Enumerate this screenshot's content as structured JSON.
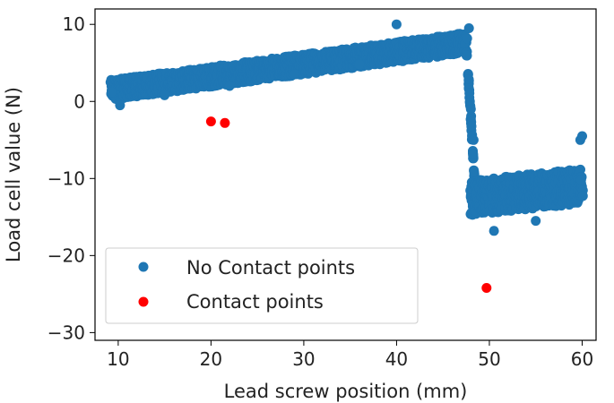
{
  "chart_data": {
    "type": "scatter",
    "title": "",
    "xlabel": "Lead screw position (mm)",
    "ylabel": "Load cell value (N)",
    "xlim": [
      7.5,
      61.5
    ],
    "ylim": [
      -31,
      12
    ],
    "xticks": [
      10,
      20,
      30,
      40,
      50,
      60
    ],
    "yticks": [
      -30,
      -20,
      -10,
      0,
      10
    ],
    "xtick_labels": [
      "10",
      "20",
      "30",
      "40",
      "50",
      "60"
    ],
    "ytick_labels": [
      "−30",
      "−20",
      "−10",
      "0",
      "10"
    ],
    "grid": false,
    "legend_position": "lower-left",
    "series": [
      {
        "name": "No Contact points",
        "color": "#1f77b4",
        "bands": [
          {
            "x_start": 9.2,
            "x_end": 47.5,
            "y_start_center": 1.5,
            "y_end_center": 7.6,
            "spread": 2.6
          },
          {
            "x_start": 47.6,
            "x_end": 48.5,
            "y_start_center": 6.0,
            "y_end_center": -12.0,
            "spread": 1.5
          },
          {
            "x_start": 48.0,
            "x_end": 60.0,
            "y_start_center": -12.5,
            "y_end_center": -11.0,
            "spread": 4.5
          }
        ],
        "points": [
          {
            "x": 9.3,
            "y": 1.2
          },
          {
            "x": 10.2,
            "y": -0.5
          },
          {
            "x": 15.0,
            "y": 0.8
          },
          {
            "x": 22.0,
            "y": 2.0
          },
          {
            "x": 29.0,
            "y": 3.5
          },
          {
            "x": 36.0,
            "y": 4.8
          },
          {
            "x": 40.0,
            "y": 10.0
          },
          {
            "x": 47.8,
            "y": 9.5
          },
          {
            "x": 48.0,
            "y": -1.0
          },
          {
            "x": 48.3,
            "y": -5.0
          },
          {
            "x": 50.5,
            "y": -16.8
          },
          {
            "x": 55.0,
            "y": -15.5
          },
          {
            "x": 59.8,
            "y": -5.0
          },
          {
            "x": 60.0,
            "y": -4.5
          }
        ]
      },
      {
        "name": "Contact points",
        "color": "#ff0000",
        "points": [
          {
            "x": 20.0,
            "y": -2.6
          },
          {
            "x": 21.5,
            "y": -2.8
          },
          {
            "x": 49.7,
            "y": -24.2
          }
        ]
      }
    ]
  }
}
